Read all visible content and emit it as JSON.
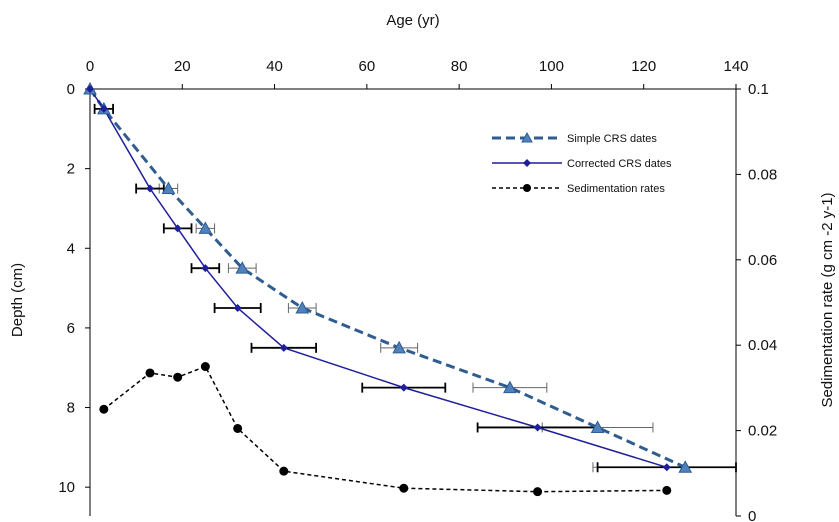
{
  "chart_data": {
    "type": "line",
    "xlabel": "Age (yr)",
    "ylabel": "Depth (cm)",
    "y2label": "Sedimentation rate (g cm -2 y-1)",
    "xlim": [
      0,
      140
    ],
    "ylim": [
      0,
      11
    ],
    "y2lim": [
      0,
      0.1
    ],
    "xticks": [
      "0",
      "20",
      "40",
      "60",
      "80",
      "100",
      "120",
      "140"
    ],
    "yticks": [
      "0",
      "2",
      "4",
      "6",
      "8",
      "10"
    ],
    "y2ticks": [
      "0.1",
      "0.08",
      "0.06",
      "0.04",
      "0.02",
      "0"
    ],
    "y_inverted": true,
    "grid": false,
    "legend_position": "top-right",
    "series": [
      {
        "name": "Simple CRS dates",
        "axis": "left",
        "color": "#2f5d8f",
        "marker_color": "#4f81bd",
        "style": "dashed",
        "marker": "triangle",
        "points": [
          {
            "x": 0,
            "y": 0,
            "err": 0
          },
          {
            "x": 3,
            "y": 0.5,
            "err": 2
          },
          {
            "x": 17,
            "y": 2.5,
            "err": 2
          },
          {
            "x": 25,
            "y": 3.5,
            "err": 2
          },
          {
            "x": 33,
            "y": 4.5,
            "err": 3
          },
          {
            "x": 46,
            "y": 5.5,
            "err": 3
          },
          {
            "x": 67,
            "y": 6.5,
            "err": 4
          },
          {
            "x": 91,
            "y": 7.5,
            "err": 8
          },
          {
            "x": 110,
            "y": 8.5,
            "err": 12
          },
          {
            "x": 129,
            "y": 9.5,
            "err": 20
          }
        ]
      },
      {
        "name": "Corrected CRS dates",
        "axis": "left",
        "color": "#1f1f99",
        "style": "solid",
        "marker": "diamond",
        "points": [
          {
            "x": 0,
            "y": 0,
            "err": 0
          },
          {
            "x": 3,
            "y": 0.5,
            "err": 2
          },
          {
            "x": 13,
            "y": 2.5,
            "err": 3
          },
          {
            "x": 19,
            "y": 3.5,
            "err": 3
          },
          {
            "x": 25,
            "y": 4.5,
            "err": 3
          },
          {
            "x": 32,
            "y": 5.5,
            "err": 5
          },
          {
            "x": 42,
            "y": 6.5,
            "err": 7
          },
          {
            "x": 68,
            "y": 7.5,
            "err": 9
          },
          {
            "x": 97,
            "y": 8.5,
            "err": 13
          },
          {
            "x": 125,
            "y": 9.5,
            "err": 15
          }
        ]
      },
      {
        "name": "Sedimentation rates",
        "axis": "right",
        "color": "#000000",
        "style": "dotted",
        "marker": "circle",
        "points": [
          {
            "x": 3,
            "y": 0.025
          },
          {
            "x": 13,
            "y": 0.0335
          },
          {
            "x": 19,
            "y": 0.0325
          },
          {
            "x": 25,
            "y": 0.035
          },
          {
            "x": 32,
            "y": 0.0205
          },
          {
            "x": 42,
            "y": 0.0105
          },
          {
            "x": 68,
            "y": 0.0065
          },
          {
            "x": 97,
            "y": 0.0057
          },
          {
            "x": 125,
            "y": 0.006
          }
        ]
      }
    ]
  }
}
